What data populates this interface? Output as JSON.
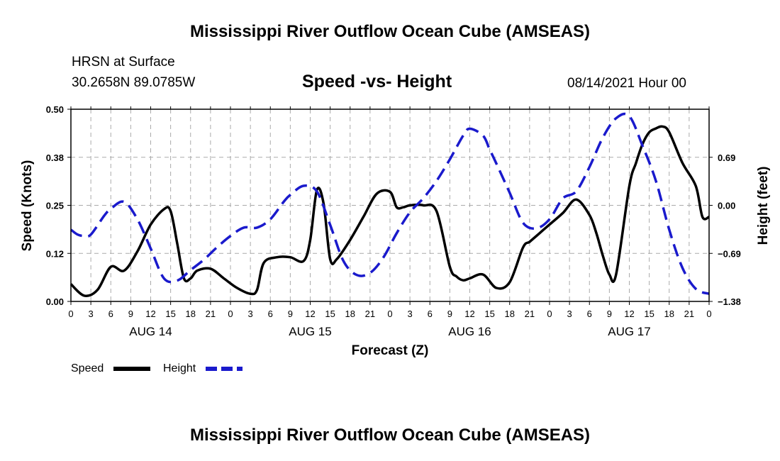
{
  "header": {
    "title": "Mississippi River Outflow Ocean Cube (AMSEAS)",
    "station": "HRSN at Surface",
    "coords": "30.2658N  89.0785W",
    "chart_title": "Speed -vs- Height",
    "date": "08/14/2021 Hour 00"
  },
  "footer": {
    "title": "Mississippi River Outflow Ocean Cube (AMSEAS)"
  },
  "legend": {
    "speed_label": "Speed",
    "height_label": "Height"
  },
  "colors": {
    "speed": "#000000",
    "height": "#1a1acc",
    "grid": "#aaaaaa"
  },
  "chart_data": {
    "type": "line",
    "title": "Speed -vs- Height",
    "xlabel": "Forecast (Z)",
    "ylabel_left": "Speed (Knots)",
    "ylabel_right": "Height (feet)",
    "x_range_hours": [
      0,
      96
    ],
    "ylim_left": [
      0,
      0.5
    ],
    "ylim_right": [
      -1.38,
      1.38
    ],
    "x_tick_labels": [
      "0",
      "3",
      "6",
      "9",
      "12",
      "15",
      "18",
      "21",
      "0",
      "3",
      "6",
      "9",
      "12",
      "15",
      "18",
      "21",
      "0",
      "3",
      "6",
      "9",
      "12",
      "15",
      "18",
      "21",
      "0",
      "3",
      "6",
      "9",
      "12",
      "15",
      "18",
      "21",
      "0"
    ],
    "day_labels": [
      "AUG 14",
      "AUG 15",
      "AUG 16",
      "AUG 17"
    ],
    "y_ticks_left": [
      "0.00",
      "0.12",
      "0.25",
      "0.38",
      "0.50"
    ],
    "y_ticks_right": [
      "−1.38",
      "−0.69",
      "0.00",
      "0.69"
    ],
    "y_ticks_left_values": [
      0.0,
      0.125,
      0.25,
      0.375,
      0.5
    ],
    "y_ticks_right_values": [
      -1.38,
      -0.69,
      0.0,
      0.69
    ],
    "grid": true,
    "series": [
      {
        "name": "Speed",
        "axis": "left",
        "style": "solid",
        "x": [
          0,
          2,
          4,
          6,
          8,
          10,
          12,
          14,
          15,
          16,
          17,
          18,
          19,
          21,
          23,
          25,
          27,
          28,
          29,
          31,
          33,
          35,
          36,
          37,
          38,
          39,
          40,
          42,
          44,
          46,
          48,
          49,
          50,
          51,
          53,
          55,
          57,
          58,
          59,
          60,
          62,
          64,
          66,
          68,
          69,
          70,
          71,
          72,
          74,
          76,
          78,
          79,
          80,
          81,
          82,
          84,
          85,
          86,
          87,
          88,
          89,
          90,
          92,
          94,
          95,
          96
        ],
        "values": [
          0.045,
          0.015,
          0.03,
          0.09,
          0.08,
          0.13,
          0.2,
          0.24,
          0.235,
          0.15,
          0.06,
          0.06,
          0.08,
          0.085,
          0.06,
          0.035,
          0.02,
          0.03,
          0.1,
          0.115,
          0.115,
          0.105,
          0.16,
          0.29,
          0.255,
          0.11,
          0.11,
          0.16,
          0.22,
          0.28,
          0.285,
          0.245,
          0.245,
          0.25,
          0.25,
          0.235,
          0.09,
          0.065,
          0.055,
          0.06,
          0.07,
          0.035,
          0.05,
          0.14,
          0.155,
          0.17,
          0.185,
          0.2,
          0.23,
          0.265,
          0.225,
          0.18,
          0.12,
          0.07,
          0.07,
          0.3,
          0.36,
          0.41,
          0.44,
          0.45,
          0.455,
          0.44,
          0.36,
          0.3,
          0.22,
          0.22
        ]
      },
      {
        "name": "Height",
        "axis": "right",
        "style": "dashed",
        "x": [
          0,
          1,
          2,
          3,
          5,
          6,
          8,
          10,
          12,
          14,
          16,
          18,
          20,
          22,
          24,
          26,
          28,
          30,
          32,
          33,
          35,
          37,
          39,
          41,
          43,
          45,
          47,
          49,
          51,
          53,
          55,
          57,
          59,
          60,
          62,
          63,
          64,
          66,
          68,
          70,
          72,
          74,
          76,
          78,
          80,
          82,
          84,
          86,
          88,
          90,
          92,
          94,
          96
        ],
        "values": [
          -0.35,
          -0.42,
          -0.44,
          -0.42,
          -0.15,
          -0.05,
          0.05,
          -0.2,
          -0.62,
          -1.05,
          -1.08,
          -0.93,
          -0.78,
          -0.6,
          -0.44,
          -0.32,
          -0.32,
          -0.2,
          0.05,
          0.15,
          0.28,
          0.2,
          -0.28,
          -0.8,
          -1.0,
          -0.97,
          -0.75,
          -0.4,
          -0.1,
          0.1,
          0.35,
          0.66,
          1.0,
          1.1,
          1.0,
          0.8,
          0.6,
          0.18,
          -0.25,
          -0.33,
          -0.2,
          0.1,
          0.2,
          0.55,
          0.97,
          1.25,
          1.28,
          0.85,
          0.35,
          -0.35,
          -0.9,
          -1.2,
          -1.27
        ]
      }
    ]
  }
}
